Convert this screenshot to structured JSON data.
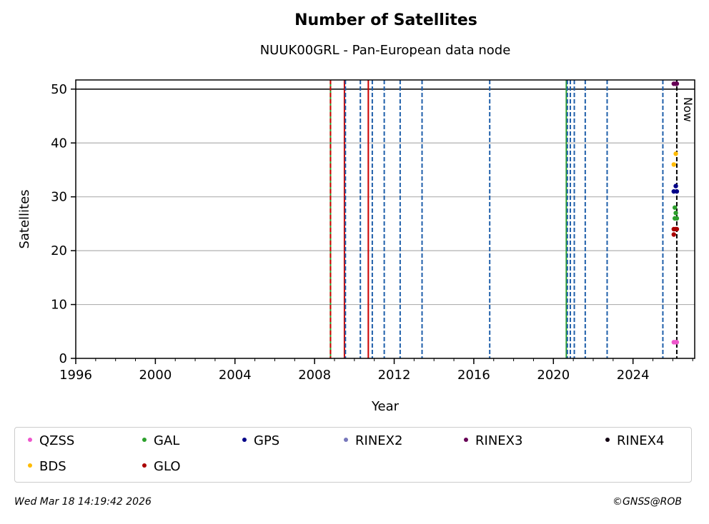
{
  "chart_data": {
    "type": "scatter",
    "title": "Number of Satellites",
    "subtitle": "NUUK00GRL - Pan-European data node",
    "xlabel": "Year",
    "ylabel": "Satellites",
    "xlim": [
      1996,
      2027.1
    ],
    "ylim": [
      0,
      51.7
    ],
    "xticks": [
      1996,
      2000,
      2004,
      2008,
      2012,
      2016,
      2020,
      2024
    ],
    "yticks": [
      0,
      10,
      20,
      30,
      40,
      50
    ],
    "grid_y": true,
    "reference_line_y": 50,
    "now_label": "Now",
    "now_x": 2026.2,
    "vlines": [
      {
        "x": 2008.8,
        "color": "#2ca02c",
        "style": "solid"
      },
      {
        "x": 2008.8,
        "color": "#cc0000",
        "style": "dashed"
      },
      {
        "x": 2009.5,
        "color": "#cc0000",
        "style": "solid"
      },
      {
        "x": 2009.55,
        "color": "#1f5faa",
        "style": "dashed"
      },
      {
        "x": 2010.7,
        "color": "#cc0000",
        "style": "solid"
      },
      {
        "x": 2010.3,
        "color": "#1f5faa",
        "style": "dashed"
      },
      {
        "x": 2010.9,
        "color": "#1f5faa",
        "style": "dashed"
      },
      {
        "x": 2011.5,
        "color": "#1f5faa",
        "style": "dashed"
      },
      {
        "x": 2012.3,
        "color": "#1f5faa",
        "style": "dashed"
      },
      {
        "x": 2013.4,
        "color": "#1f5faa",
        "style": "dashed"
      },
      {
        "x": 2016.8,
        "color": "#1f5faa",
        "style": "dashed"
      },
      {
        "x": 2020.65,
        "color": "#2ca02c",
        "style": "solid"
      },
      {
        "x": 2020.7,
        "color": "#1f5faa",
        "style": "dashed"
      },
      {
        "x": 2020.85,
        "color": "#1f5faa",
        "style": "dashed"
      },
      {
        "x": 2021.05,
        "color": "#1f5faa",
        "style": "dashed"
      },
      {
        "x": 2021.6,
        "color": "#1f5faa",
        "style": "dashed"
      },
      {
        "x": 2022.7,
        "color": "#1f5faa",
        "style": "dashed"
      },
      {
        "x": 2025.5,
        "color": "#1f5faa",
        "style": "dashed"
      },
      {
        "x": 2026.2,
        "color": "#000000",
        "style": "dashed"
      }
    ],
    "series": [
      {
        "name": "QZSS",
        "color": "#ee55cc",
        "points": [
          [
            2026.05,
            3
          ],
          [
            2026.15,
            3
          ],
          [
            2026.2,
            3
          ]
        ]
      },
      {
        "name": "GAL",
        "color": "#2ca02c",
        "points": [
          [
            2026.1,
            26
          ],
          [
            2026.15,
            27
          ],
          [
            2026.1,
            28
          ],
          [
            2026.2,
            26
          ]
        ]
      },
      {
        "name": "GPS",
        "color": "#000088",
        "points": [
          [
            2026.05,
            31
          ],
          [
            2026.15,
            32
          ],
          [
            2026.2,
            31
          ]
        ]
      },
      {
        "name": "RINEX2",
        "color": "#7777bb",
        "points": []
      },
      {
        "name": "RINEX3",
        "color": "#660055",
        "points": [
          [
            2026.05,
            51
          ],
          [
            2026.15,
            51
          ],
          [
            2026.2,
            51
          ]
        ]
      },
      {
        "name": "RINEX4",
        "color": "#110011",
        "points": []
      },
      {
        "name": "BDS",
        "color": "#ffbb00",
        "points": [
          [
            2026.05,
            36
          ],
          [
            2026.15,
            38
          ]
        ]
      },
      {
        "name": "GLO",
        "color": "#aa0000",
        "points": [
          [
            2026.05,
            23
          ],
          [
            2026.05,
            24
          ],
          [
            2026.15,
            24
          ],
          [
            2026.2,
            24
          ]
        ]
      }
    ]
  },
  "footer": {
    "timestamp": "Wed Mar 18 14:19:42 2026",
    "credit": "©GNSS@ROB"
  }
}
